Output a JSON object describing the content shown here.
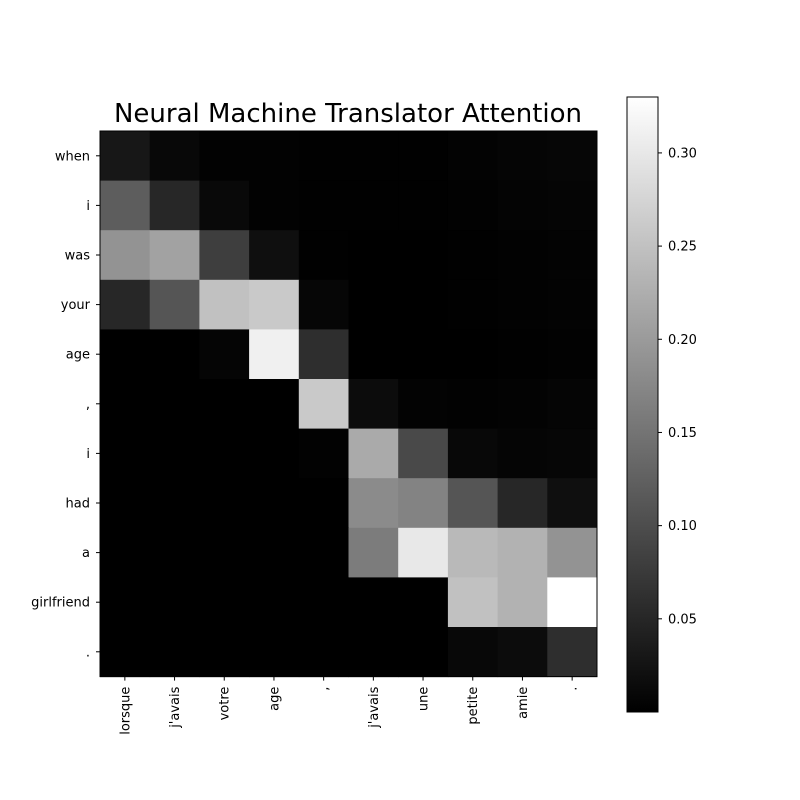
{
  "chart_data": {
    "type": "heatmap",
    "title": "Neural Machine Translator Attention",
    "x_categories": [
      "lorsque",
      "j'avais",
      "votre",
      "age",
      ",",
      "j'avais",
      "une",
      "petite",
      "amie",
      "."
    ],
    "y_categories": [
      "when",
      "i",
      "was",
      "your",
      "age",
      ",",
      "i",
      "had",
      "a",
      "girlfriend",
      "."
    ],
    "values": [
      [
        0.03,
        0.01,
        0.003,
        0.002,
        0.001,
        0.001,
        0.001,
        0.004,
        0.006,
        0.008
      ],
      [
        0.12,
        0.05,
        0.012,
        0.002,
        0.001,
        0.001,
        0.001,
        0.002,
        0.005,
        0.006
      ],
      [
        0.19,
        0.21,
        0.08,
        0.02,
        0.001,
        0.0,
        0.0,
        0.001,
        0.002,
        0.004
      ],
      [
        0.05,
        0.11,
        0.25,
        0.26,
        0.008,
        0.0,
        0.0,
        0.001,
        0.002,
        0.004
      ],
      [
        0.0,
        0.0,
        0.007,
        0.31,
        0.06,
        0.0,
        0.0,
        0.0,
        0.001,
        0.002
      ],
      [
        0.0,
        0.0,
        0.0,
        0.0,
        0.26,
        0.015,
        0.004,
        0.003,
        0.004,
        0.006
      ],
      [
        0.0,
        0.0,
        0.0,
        0.0,
        0.003,
        0.22,
        0.095,
        0.01,
        0.006,
        0.008
      ],
      [
        0.0,
        0.0,
        0.0,
        0.0,
        0.0,
        0.18,
        0.17,
        0.11,
        0.05,
        0.02
      ],
      [
        0.0,
        0.0,
        0.0,
        0.0,
        0.0,
        0.16,
        0.3,
        0.24,
        0.23,
        0.19
      ],
      [
        0.0,
        0.0,
        0.0,
        0.0,
        0.0,
        0.0,
        0.0,
        0.25,
        0.23,
        0.33
      ],
      [
        0.0,
        0.0,
        0.0,
        0.0,
        0.0,
        0.0,
        0.0,
        0.01,
        0.015,
        0.06
      ]
    ],
    "colormap": "gray",
    "vmin": 0.0,
    "vmax": 0.33,
    "colorbar_ticks": [
      0.05,
      0.1,
      0.15,
      0.2,
      0.25,
      0.3
    ],
    "colorbar_tick_labels": [
      "0.05",
      "0.10",
      "0.15",
      "0.20",
      "0.25",
      "0.30"
    ],
    "grid": false,
    "colorbar_position": "right"
  }
}
